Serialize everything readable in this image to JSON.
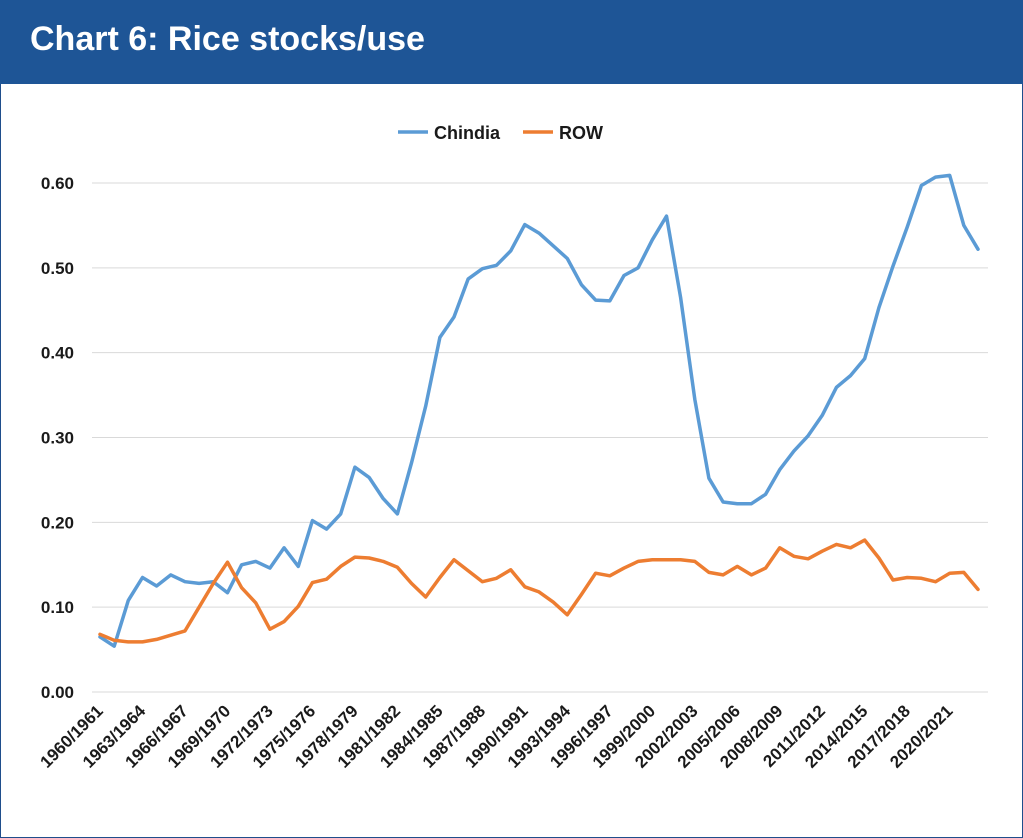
{
  "header": {
    "title": "Chart 6: Rice stocks/use"
  },
  "chart_data": {
    "type": "line",
    "title": "Chart 6: Rice stocks/use",
    "xlabel": "",
    "ylabel": "",
    "ylim": [
      0,
      0.6
    ],
    "y_ticks": [
      "0.00",
      "0.10",
      "0.20",
      "0.30",
      "0.40",
      "0.50",
      "0.60"
    ],
    "y_tick_values": [
      0,
      0.1,
      0.2,
      0.3,
      0.4,
      0.5,
      0.6
    ],
    "grid": true,
    "legend_position": "top-center",
    "x": [
      "1960/1961",
      "1961/1962",
      "1962/1963",
      "1963/1964",
      "1964/1965",
      "1965/1966",
      "1966/1967",
      "1967/1968",
      "1968/1969",
      "1969/1970",
      "1970/1971",
      "1971/1972",
      "1972/1973",
      "1973/1974",
      "1974/1975",
      "1975/1976",
      "1976/1977",
      "1977/1978",
      "1978/1979",
      "1979/1980",
      "1980/1981",
      "1981/1982",
      "1982/1983",
      "1983/1984",
      "1984/1985",
      "1985/1986",
      "1986/1987",
      "1987/1988",
      "1988/1989",
      "1989/1990",
      "1990/1991",
      "1991/1992",
      "1992/1993",
      "1993/1994",
      "1994/1995",
      "1995/1996",
      "1996/1997",
      "1997/1998",
      "1998/1999",
      "1999/2000",
      "2000/2001",
      "2001/2002",
      "2002/2003",
      "2003/2004",
      "2004/2005",
      "2005/2006",
      "2006/2007",
      "2007/2008",
      "2008/2009",
      "2009/2010",
      "2010/2011",
      "2011/2012",
      "2012/2013",
      "2013/2014",
      "2014/2015",
      "2015/2016",
      "2016/2017",
      "2017/2018",
      "2018/2019",
      "2019/2020",
      "2020/2021",
      "2021/2022",
      "2022/2023"
    ],
    "x_tick_labels": [
      "1960/1961",
      "1963/1964",
      "1966/1967",
      "1969/1970",
      "1972/1973",
      "1975/1976",
      "1978/1979",
      "1981/1982",
      "1984/1985",
      "1987/1988",
      "1990/1991",
      "1993/1994",
      "1996/1997",
      "1999/2000",
      "2002/2003",
      "2005/2006",
      "2008/2009",
      "2011/2012",
      "2014/2015",
      "2017/2018",
      "2020/2021"
    ],
    "x_tick_indices": [
      0,
      3,
      6,
      9,
      12,
      15,
      18,
      21,
      24,
      27,
      30,
      33,
      36,
      39,
      42,
      45,
      48,
      51,
      54,
      57,
      60
    ],
    "series": [
      {
        "name": "Chindia",
        "color": "#5b9bd5",
        "values": [
          0.065,
          0.054,
          0.108,
          0.135,
          0.125,
          0.138,
          0.13,
          0.128,
          0.13,
          0.117,
          0.15,
          0.154,
          0.146,
          0.17,
          0.148,
          0.202,
          0.192,
          0.21,
          0.265,
          0.253,
          0.228,
          0.21,
          0.27,
          0.337,
          0.418,
          0.442,
          0.487,
          0.499,
          0.503,
          0.52,
          0.551,
          0.541,
          0.526,
          0.511,
          0.48,
          0.462,
          0.461,
          0.491,
          0.5,
          0.533,
          0.561,
          0.465,
          0.345,
          0.252,
          0.224,
          0.222,
          0.222,
          0.233,
          0.262,
          0.284,
          0.302,
          0.326,
          0.359,
          0.373,
          0.393,
          0.453,
          0.502,
          0.548,
          0.597,
          0.607,
          0.609,
          0.55,
          0.522
        ]
      },
      {
        "name": "ROW",
        "color": "#ed7d31",
        "values": [
          0.068,
          0.061,
          0.059,
          0.059,
          0.062,
          0.067,
          0.072,
          0.1,
          0.128,
          0.153,
          0.123,
          0.105,
          0.074,
          0.083,
          0.101,
          0.129,
          0.133,
          0.148,
          0.159,
          0.158,
          0.154,
          0.147,
          0.128,
          0.112,
          0.135,
          0.156,
          0.143,
          0.13,
          0.134,
          0.144,
          0.124,
          0.118,
          0.106,
          0.091,
          0.115,
          0.14,
          0.137,
          0.146,
          0.154,
          0.156,
          0.156,
          0.156,
          0.154,
          0.141,
          0.138,
          0.148,
          0.138,
          0.146,
          0.17,
          0.16,
          0.157,
          0.166,
          0.174,
          0.17,
          0.179,
          0.158,
          0.132,
          0.135,
          0.134,
          0.13,
          0.14,
          0.141,
          0.121
        ]
      }
    ]
  }
}
